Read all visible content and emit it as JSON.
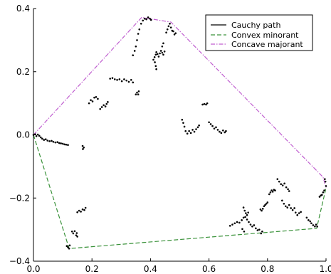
{
  "chart_data": {
    "type": "scatter",
    "xlim": [
      0.0,
      1.0
    ],
    "ylim": [
      -0.4,
      0.4
    ],
    "x_ticks": [
      0.0,
      0.2,
      0.4,
      0.6,
      0.8,
      1.0
    ],
    "x_tick_labels": [
      "0.0",
      "0.2",
      "0.4",
      "0.6",
      "0.8",
      "1.0"
    ],
    "y_ticks": [
      -0.4,
      -0.2,
      0.0,
      0.2,
      0.4
    ],
    "y_tick_labels": [
      "−0.4",
      "−0.2",
      "0.0",
      "0.2",
      "0.4"
    ],
    "grid": false,
    "legend_position": "top-right",
    "legend": [
      "Cauchy path",
      "Convex minorant",
      "Concave majorant"
    ],
    "colors": {
      "path": "#000000",
      "minorant": "#3a923a",
      "majorant": "#c05fd0"
    },
    "series": [
      {
        "name": "Cauchy path",
        "style": "points",
        "segments": [
          [
            [
              0.0,
              0.0
            ],
            [
              0.006,
              0.002
            ],
            [
              0.01,
              -0.004
            ],
            [
              0.015,
              0.001
            ],
            [
              0.02,
              -0.003
            ],
            [
              0.025,
              -0.008
            ]
          ],
          [
            [
              0.03,
              -0.012
            ],
            [
              0.036,
              -0.016
            ],
            [
              0.042,
              -0.014
            ],
            [
              0.048,
              -0.018
            ],
            [
              0.055,
              -0.02
            ],
            [
              0.062,
              -0.019
            ],
            [
              0.068,
              -0.022
            ],
            [
              0.075,
              -0.024
            ],
            [
              0.082,
              -0.023
            ],
            [
              0.088,
              -0.026
            ],
            [
              0.094,
              -0.027
            ],
            [
              0.1,
              -0.028
            ],
            [
              0.106,
              -0.03
            ],
            [
              0.112,
              -0.031
            ],
            [
              0.118,
              -0.032
            ]
          ],
          [
            [
              0.168,
              -0.035
            ],
            [
              0.172,
              -0.04
            ],
            [
              0.169,
              -0.045
            ]
          ],
          [
            [
              0.15,
              -0.245
            ],
            [
              0.156,
              -0.24
            ],
            [
              0.162,
              -0.243
            ],
            [
              0.168,
              -0.236
            ],
            [
              0.174,
              -0.238
            ],
            [
              0.178,
              -0.231
            ]
          ],
          [
            [
              0.132,
              -0.306
            ],
            [
              0.136,
              -0.312
            ],
            [
              0.141,
              -0.305
            ],
            [
              0.146,
              -0.318
            ],
            [
              0.15,
              -0.322
            ],
            [
              0.148,
              -0.311
            ]
          ],
          [
            [
              0.114,
              -0.352
            ],
            [
              0.118,
              -0.356
            ],
            [
              0.122,
              -0.36
            ],
            [
              0.124,
              -0.35
            ]
          ],
          [
            [
              0.19,
              0.1
            ],
            [
              0.196,
              0.11
            ],
            [
              0.202,
              0.106
            ],
            [
              0.208,
              0.118
            ],
            [
              0.214,
              0.12
            ],
            [
              0.22,
              0.114
            ]
          ],
          [
            [
              0.228,
              0.082
            ],
            [
              0.234,
              0.088
            ],
            [
              0.24,
              0.094
            ],
            [
              0.246,
              0.09
            ],
            [
              0.25,
              0.098
            ],
            [
              0.254,
              0.104
            ]
          ],
          [
            [
              0.262,
              0.178
            ],
            [
              0.27,
              0.18
            ],
            [
              0.278,
              0.176
            ],
            [
              0.286,
              0.174
            ],
            [
              0.294,
              0.176
            ],
            [
              0.302,
              0.17
            ],
            [
              0.31,
              0.176
            ],
            [
              0.318,
              0.172
            ],
            [
              0.326,
              0.168
            ],
            [
              0.334,
              0.174
            ],
            [
              0.34,
              0.166
            ]
          ],
          [
            [
              0.34,
              0.252
            ],
            [
              0.346,
              0.266
            ],
            [
              0.35,
              0.28
            ],
            [
              0.354,
              0.3
            ],
            [
              0.358,
              0.32
            ],
            [
              0.362,
              0.334
            ],
            [
              0.368,
              0.352
            ],
            [
              0.374,
              0.362
            ],
            [
              0.38,
              0.368
            ],
            [
              0.386,
              0.366
            ],
            [
              0.392,
              0.372
            ],
            [
              0.398,
              0.368
            ],
            [
              0.402,
              0.364
            ]
          ],
          [
            [
              0.41,
              0.238
            ],
            [
              0.414,
              0.246
            ],
            [
              0.418,
              0.254
            ],
            [
              0.42,
              0.262
            ],
            [
              0.424,
              0.256
            ],
            [
              0.428,
              0.248
            ],
            [
              0.432,
              0.258
            ],
            [
              0.436,
              0.266
            ],
            [
              0.44,
              0.26
            ],
            [
              0.444,
              0.254
            ],
            [
              0.448,
              0.264
            ]
          ],
          [
            [
              0.415,
              0.23
            ],
            [
              0.418,
              0.218
            ],
            [
              0.42,
              0.208
            ]
          ],
          [
            [
              0.44,
              0.28
            ],
            [
              0.444,
              0.29
            ]
          ],
          [
            [
              0.454,
              0.324
            ],
            [
              0.458,
              0.334
            ],
            [
              0.462,
              0.344
            ],
            [
              0.466,
              0.352
            ],
            [
              0.47,
              0.34
            ],
            [
              0.474,
              0.33
            ],
            [
              0.478,
              0.328
            ],
            [
              0.482,
              0.318
            ],
            [
              0.486,
              0.322
            ]
          ],
          [
            [
              0.35,
              0.128
            ],
            [
              0.354,
              0.134
            ],
            [
              0.358,
              0.128
            ],
            [
              0.36,
              0.138
            ]
          ],
          [
            [
              0.508,
              0.048
            ],
            [
              0.512,
              0.038
            ],
            [
              0.516,
              0.026
            ],
            [
              0.52,
              0.012
            ],
            [
              0.526,
              0.004
            ],
            [
              0.532,
              0.012
            ],
            [
              0.538,
              0.006
            ],
            [
              0.544,
              0.016
            ],
            [
              0.55,
              0.01
            ],
            [
              0.556,
              0.018
            ],
            [
              0.562,
              0.024
            ],
            [
              0.566,
              0.03
            ]
          ],
          [
            [
              0.578,
              0.096
            ],
            [
              0.584,
              0.098
            ],
            [
              0.59,
              0.096
            ],
            [
              0.594,
              0.1
            ]
          ],
          [
            [
              0.6,
              0.04
            ],
            [
              0.606,
              0.034
            ],
            [
              0.612,
              0.028
            ],
            [
              0.618,
              0.02
            ],
            [
              0.624,
              0.024
            ],
            [
              0.63,
              0.016
            ],
            [
              0.636,
              0.01
            ],
            [
              0.642,
              0.006
            ],
            [
              0.648,
              0.014
            ],
            [
              0.654,
              0.008
            ],
            [
              0.658,
              0.012
            ]
          ],
          [
            [
              0.672,
              -0.288
            ],
            [
              0.68,
              -0.284
            ],
            [
              0.688,
              -0.28
            ],
            [
              0.696,
              -0.276
            ],
            [
              0.704,
              -0.278
            ],
            [
              0.712,
              -0.27
            ],
            [
              0.718,
              -0.262
            ],
            [
              0.724,
              -0.26
            ],
            [
              0.73,
              -0.268
            ],
            [
              0.736,
              -0.276
            ],
            [
              0.742,
              -0.284
            ],
            [
              0.748,
              -0.29
            ],
            [
              0.754,
              -0.286
            ],
            [
              0.76,
              -0.296
            ],
            [
              0.766,
              -0.302
            ],
            [
              0.772,
              -0.3
            ],
            [
              0.778,
              -0.312
            ],
            [
              0.782,
              -0.306
            ]
          ],
          [
            [
              0.714,
              -0.298
            ],
            [
              0.72,
              -0.306
            ]
          ],
          [
            [
              0.718,
              -0.23
            ],
            [
              0.722,
              -0.24
            ],
            [
              0.726,
              -0.248
            ],
            [
              0.73,
              -0.254
            ],
            [
              0.734,
              -0.246
            ]
          ],
          [
            [
              0.776,
              -0.236
            ],
            [
              0.78,
              -0.24
            ],
            [
              0.784,
              -0.234
            ],
            [
              0.788,
              -0.226
            ],
            [
              0.792,
              -0.222
            ],
            [
              0.796,
              -0.218
            ],
            [
              0.8,
              -0.214
            ]
          ],
          [
            [
              0.806,
              -0.188
            ],
            [
              0.81,
              -0.182
            ],
            [
              0.814,
              -0.176
            ],
            [
              0.818,
              -0.18
            ],
            [
              0.822,
              -0.174
            ],
            [
              0.826,
              -0.176
            ]
          ],
          [
            [
              0.834,
              -0.14
            ],
            [
              0.84,
              -0.148
            ],
            [
              0.846,
              -0.156
            ],
            [
              0.852,
              -0.16
            ],
            [
              0.858,
              -0.154
            ],
            [
              0.864,
              -0.166
            ],
            [
              0.87,
              -0.172
            ],
            [
              0.874,
              -0.178
            ]
          ],
          [
            [
              0.85,
              -0.208
            ],
            [
              0.856,
              -0.218
            ],
            [
              0.862,
              -0.226
            ],
            [
              0.868,
              -0.23
            ],
            [
              0.874,
              -0.222
            ],
            [
              0.88,
              -0.232
            ],
            [
              0.886,
              -0.238
            ],
            [
              0.892,
              -0.232
            ]
          ],
          [
            [
              0.896,
              -0.246
            ],
            [
              0.902,
              -0.254
            ],
            [
              0.908,
              -0.248
            ],
            [
              0.914,
              -0.244
            ]
          ],
          [
            [
              0.934,
              -0.262
            ],
            [
              0.94,
              -0.27
            ],
            [
              0.946,
              -0.274
            ],
            [
              0.95,
              -0.28
            ],
            [
              0.956,
              -0.286
            ],
            [
              0.962,
              -0.29
            ],
            [
              0.966,
              -0.284
            ],
            [
              0.97,
              -0.29
            ]
          ],
          [
            [
              0.978,
              -0.196
            ],
            [
              0.982,
              -0.192
            ],
            [
              0.986,
              -0.19
            ],
            [
              0.99,
              -0.182
            ],
            [
              0.994,
              -0.176
            ]
          ],
          [
            [
              0.996,
              -0.14
            ],
            [
              0.998,
              -0.148
            ],
            [
              1.0,
              -0.162
            ]
          ]
        ]
      },
      {
        "name": "Convex minorant",
        "style": "dashed",
        "x": [
          0.0,
          0.122,
          0.968,
          1.0
        ],
        "y": [
          0.0,
          -0.36,
          -0.296,
          -0.168
        ]
      },
      {
        "name": "Concave majorant",
        "style": "dashdot",
        "x": [
          0.0,
          0.37,
          0.47,
          0.99,
          1.0
        ],
        "y": [
          0.0,
          0.372,
          0.357,
          -0.134,
          -0.168
        ]
      }
    ]
  }
}
